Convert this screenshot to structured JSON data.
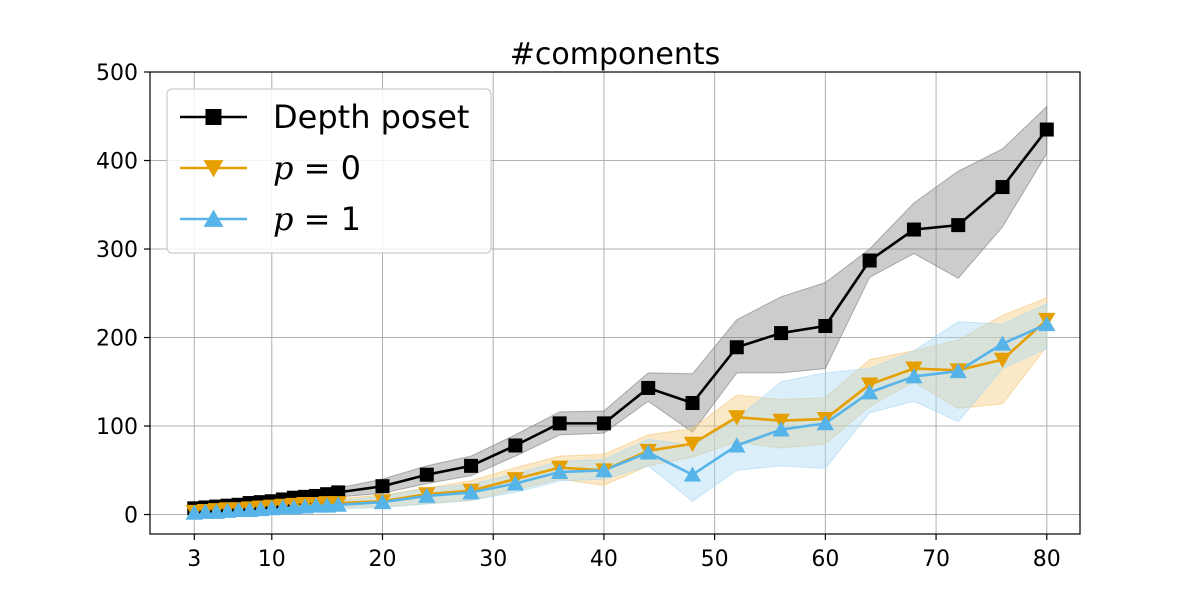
{
  "chart_data": {
    "type": "line",
    "title": "#components",
    "xlabel": "",
    "ylabel": "",
    "xlim": [
      -1,
      83
    ],
    "ylim": [
      -22,
      500
    ],
    "xticks": [
      3,
      10,
      20,
      30,
      40,
      50,
      60,
      70,
      80
    ],
    "yticks": [
      0,
      100,
      200,
      300,
      400,
      500
    ],
    "grid": true,
    "legend_position": "top-left",
    "x": [
      3,
      4,
      5,
      6,
      7,
      8,
      9,
      10,
      11,
      12,
      13,
      14,
      15,
      16,
      20,
      24,
      28,
      32,
      36,
      40,
      44,
      48,
      52,
      56,
      60,
      64,
      68,
      72,
      76,
      80
    ],
    "series": [
      {
        "name": "Depth poset",
        "legend_display": "Depth poset",
        "marker": "square",
        "color": "#000000",
        "band_color": "#7f7f7f",
        "values": [
          7,
          8,
          9,
          10,
          11,
          13,
          14,
          15,
          17,
          19,
          20,
          21,
          23,
          25,
          32,
          45,
          55,
          78,
          103,
          103,
          143,
          126,
          189,
          205,
          213,
          287,
          322,
          327,
          370,
          435
        ],
        "lower": [
          4,
          5,
          6,
          7,
          8,
          9,
          10,
          11,
          13,
          14,
          15,
          16,
          18,
          20,
          24,
          35,
          44,
          66,
          90,
          92,
          128,
          93,
          160,
          160,
          165,
          268,
          295,
          267,
          325,
          408
        ],
        "upper": [
          10,
          11,
          12,
          13,
          14,
          16,
          18,
          19,
          21,
          24,
          25,
          26,
          28,
          30,
          40,
          55,
          66,
          90,
          116,
          117,
          160,
          159,
          220,
          246,
          262,
          300,
          352,
          388,
          413,
          461
        ]
      },
      {
        "name": "p = 0",
        "legend_prefix": "p",
        "legend_suffix": " = 0",
        "marker": "triangle-down",
        "color": "#e69f00",
        "band_color": "#f5c77a",
        "values": [
          3,
          4,
          5,
          6,
          6,
          7,
          8,
          9,
          10,
          11,
          12,
          12,
          13,
          13,
          15,
          23,
          27,
          40,
          53,
          50,
          72,
          80,
          110,
          106,
          108,
          147,
          165,
          163,
          175,
          220
        ],
        "lower": [
          1,
          2,
          2,
          3,
          3,
          4,
          4,
          5,
          6,
          7,
          7,
          7,
          8,
          8,
          9,
          12,
          16,
          28,
          40,
          33,
          55,
          65,
          82,
          75,
          80,
          122,
          150,
          120,
          125,
          190
        ],
        "upper": [
          5,
          6,
          7,
          8,
          9,
          10,
          11,
          12,
          13,
          14,
          16,
          16,
          18,
          18,
          22,
          30,
          38,
          53,
          66,
          68,
          90,
          97,
          135,
          130,
          132,
          175,
          185,
          197,
          225,
          245
        ]
      },
      {
        "name": "p = 1",
        "legend_prefix": "p",
        "legend_suffix": " = 1",
        "marker": "triangle-up",
        "color": "#56b4e9",
        "band_color": "#a9d8f3",
        "values": [
          2,
          3,
          3,
          4,
          5,
          5,
          6,
          7,
          8,
          8,
          9,
          10,
          10,
          11,
          14,
          21,
          25,
          35,
          48,
          50,
          70,
          45,
          78,
          96,
          103,
          138,
          156,
          162,
          193,
          215
        ],
        "lower": [
          0,
          1,
          1,
          1,
          2,
          2,
          3,
          3,
          4,
          4,
          5,
          5,
          5,
          6,
          8,
          12,
          16,
          25,
          38,
          40,
          55,
          15,
          50,
          55,
          52,
          115,
          128,
          105,
          165,
          188
        ],
        "upper": [
          4,
          5,
          6,
          7,
          8,
          8,
          9,
          10,
          11,
          12,
          13,
          14,
          15,
          16,
          20,
          30,
          34,
          46,
          60,
          62,
          85,
          78,
          108,
          150,
          160,
          165,
          185,
          218,
          215,
          238
        ]
      }
    ]
  }
}
